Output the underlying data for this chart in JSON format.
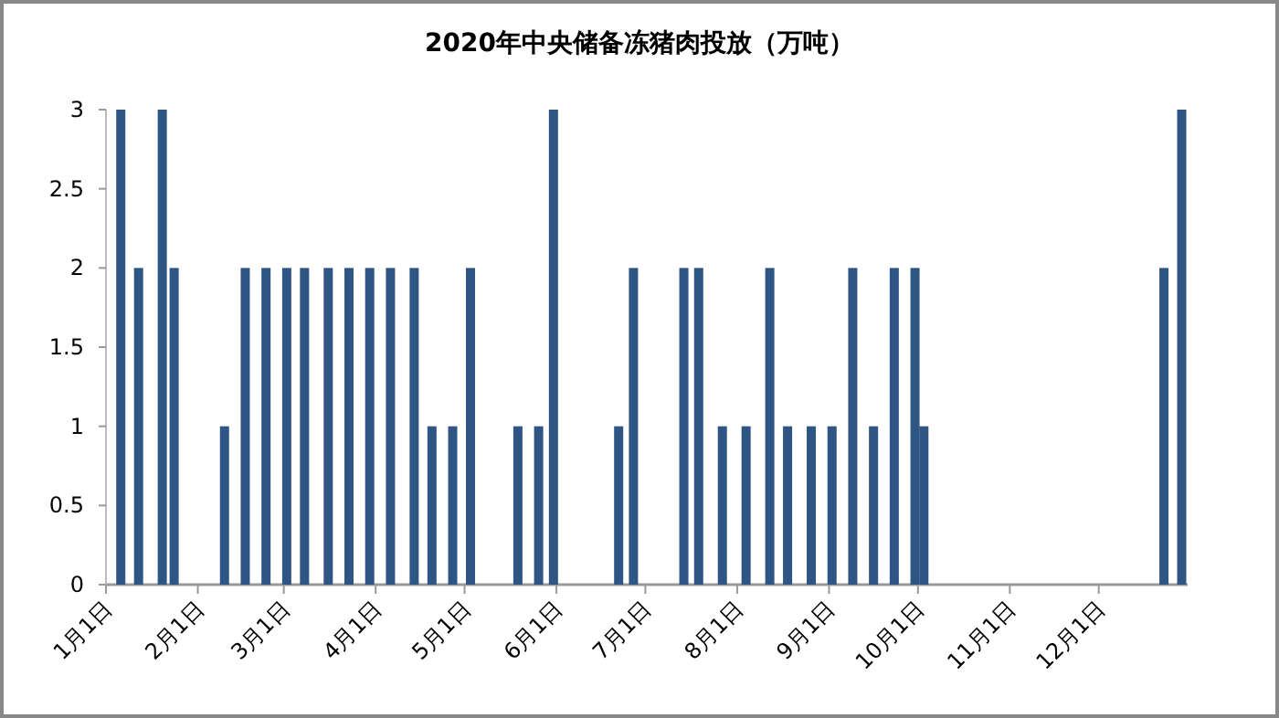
{
  "chart_data": {
    "type": "bar",
    "title": "2020年中央储备冻猪肉投放（万吨）",
    "color": "#2f5584",
    "x": [
      "2020-01-06",
      "2020-01-12",
      "2020-01-20",
      "2020-01-24",
      "2020-02-10",
      "2020-02-17",
      "2020-02-24",
      "2020-03-02",
      "2020-03-08",
      "2020-03-16",
      "2020-03-23",
      "2020-03-30",
      "2020-04-06",
      "2020-04-14",
      "2020-04-20",
      "2020-04-27",
      "2020-05-03",
      "2020-05-19",
      "2020-05-26",
      "2020-05-31",
      "2020-06-22",
      "2020-06-27",
      "2020-07-14",
      "2020-07-19",
      "2020-07-27",
      "2020-08-04",
      "2020-08-12",
      "2020-08-18",
      "2020-08-26",
      "2020-09-02",
      "2020-09-09",
      "2020-09-16",
      "2020-09-23",
      "2020-09-30",
      "2020-10-03",
      "2020-12-23",
      "2020-12-29"
    ],
    "values": [
      3,
      2,
      3,
      2,
      1,
      2,
      2,
      2,
      2,
      2,
      2,
      2,
      2,
      2,
      1,
      1,
      2,
      1,
      1,
      3,
      1,
      2,
      2,
      2,
      1,
      1,
      2,
      1,
      1,
      1,
      2,
      1,
      2,
      2,
      1,
      2,
      3
    ],
    "xlim": [
      "2020-01-01",
      "2020-12-31"
    ],
    "xticks": [
      {
        "value": "2020-01-01",
        "label": "1月1日"
      },
      {
        "value": "2020-02-01",
        "label": "2月1日"
      },
      {
        "value": "2020-03-01",
        "label": "3月1日"
      },
      {
        "value": "2020-04-01",
        "label": "4月1日"
      },
      {
        "value": "2020-05-01",
        "label": "5月1日"
      },
      {
        "value": "2020-06-01",
        "label": "6月1日"
      },
      {
        "value": "2020-07-01",
        "label": "7月1日"
      },
      {
        "value": "2020-08-01",
        "label": "8月1日"
      },
      {
        "value": "2020-09-01",
        "label": "9月1日"
      },
      {
        "value": "2020-10-01",
        "label": "10月1日"
      },
      {
        "value": "2020-11-01",
        "label": "11月1日"
      },
      {
        "value": "2020-12-01",
        "label": "12月1日"
      }
    ],
    "ylim": [
      0,
      3
    ],
    "yticks": [
      0,
      0.5,
      1,
      1.5,
      2,
      2.5,
      3
    ],
    "grid": false
  }
}
